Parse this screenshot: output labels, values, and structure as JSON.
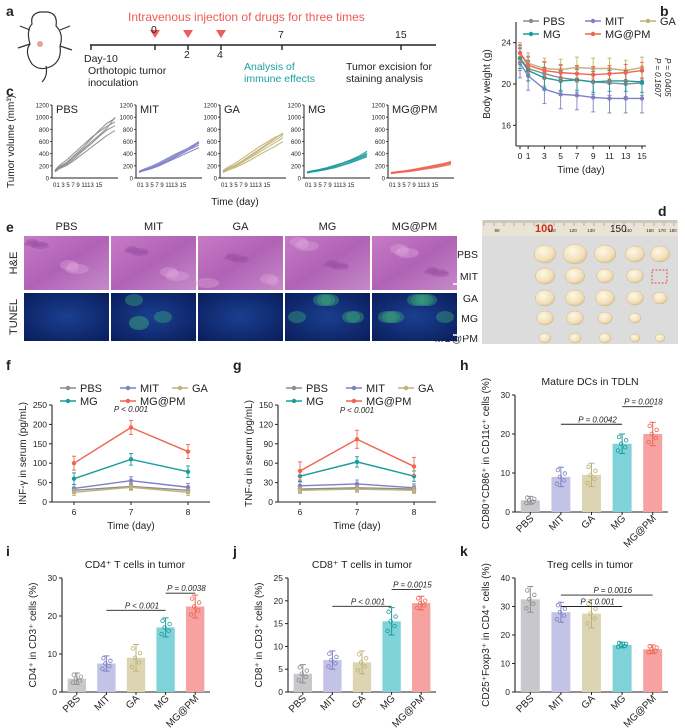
{
  "panel_a": {
    "label": "a",
    "injection_text": "Intravenous injection of drugs for three times",
    "timeline_ticks": [
      "Day-10",
      "0",
      "2",
      "4",
      "7",
      "15"
    ],
    "inoculation_text": [
      "Orthotopic tumor",
      "inoculation"
    ],
    "analysis_text": [
      "Analysis of",
      "immune effects"
    ],
    "excision_text": [
      "Tumor excision for",
      "staining analysis"
    ],
    "colors": {
      "injection": "#f05a5a",
      "analysis": "#1aa3a3",
      "line": "#222222"
    }
  },
  "groups": [
    "PBS",
    "MIT",
    "GA",
    "MG",
    "MG@PM"
  ],
  "group_colors": {
    "PBS": "#8c8c8c",
    "MIT": "#7f7fc5",
    "GA": "#bfb276",
    "MG": "#1a9c9c",
    "MG@PM": "#f06450"
  },
  "group_fills": {
    "PBS": "#c7c7cc",
    "MIT": "#c3c3e8",
    "GA": "#dcd5b4",
    "MG": "#7fd2d8",
    "MG@PM": "#f6a2a0"
  },
  "chart_data": [
    {
      "id": "b",
      "type": "line",
      "label": "b",
      "ylabel": "Body weight (g)",
      "xlabel": "Time (day)",
      "x": [
        0,
        1,
        3,
        5,
        7,
        9,
        11,
        13,
        15
      ],
      "xticks": [
        "0",
        "1",
        "3",
        "5",
        "7",
        "9",
        "11",
        "13",
        "15"
      ],
      "ylim": [
        14,
        26
      ],
      "yticks": [
        "16",
        "20",
        "24"
      ],
      "series": [
        {
          "name": "PBS",
          "values": [
            22.5,
            21.5,
            21.0,
            20.6,
            20.4,
            20.2,
            20.1,
            20.0,
            20.1
          ],
          "err": 1.2
        },
        {
          "name": "MIT",
          "values": [
            22.0,
            20.8,
            19.5,
            19.0,
            18.9,
            18.7,
            18.6,
            18.6,
            18.6
          ],
          "err": 1.4
        },
        {
          "name": "GA",
          "values": [
            23.0,
            22.0,
            21.5,
            21.4,
            21.6,
            21.5,
            21.5,
            21.3,
            21.6
          ],
          "err": 1.0
        },
        {
          "name": "MG",
          "values": [
            22.5,
            21.3,
            20.6,
            20.3,
            20.4,
            20.2,
            20.3,
            20.3,
            20.2
          ],
          "err": 1.0
        },
        {
          "name": "MG@PM",
          "values": [
            23.0,
            21.8,
            21.3,
            21.1,
            21.0,
            20.9,
            21.0,
            21.1,
            21.3
          ],
          "err": 0.8
        }
      ],
      "pvalues": [
        "P = 0.1607",
        "P = 0.0405"
      ]
    },
    {
      "id": "c",
      "type": "line",
      "label": "c",
      "ylabel": "Tumor volume (mm³)",
      "xlabel": "Time (day)",
      "x": [
        0,
        1,
        3,
        5,
        7,
        9,
        11,
        13,
        15
      ],
      "xticks": [
        "0",
        "1",
        "3",
        "5",
        "7",
        "9",
        "11",
        "13",
        "15"
      ],
      "xtick_text": "01 3 5 7 9 1113 15",
      "ylim": [
        0,
        1200
      ],
      "yticks": [
        "0",
        "200",
        "400",
        "600",
        "800",
        "1000",
        "1200"
      ],
      "panels": [
        {
          "name": "PBS",
          "curves": [
            [
              120,
              180,
              260,
              380,
              500,
              640,
              780,
              900,
              980
            ],
            [
              110,
              160,
              230,
              330,
              450,
              560,
              680,
              790,
              860
            ],
            [
              130,
              200,
              300,
              420,
              540,
              660,
              760,
              850,
              920
            ],
            [
              100,
              150,
              210,
              300,
              400,
              500,
              600,
              700,
              780
            ],
            [
              115,
              170,
              250,
              360,
              470,
              590,
              700,
              820,
              1000
            ]
          ]
        },
        {
          "name": "MIT",
          "curves": [
            [
              100,
              130,
              170,
              230,
              300,
              370,
              440,
              520,
              600
            ],
            [
              90,
              120,
              160,
              210,
              270,
              340,
              410,
              480,
              540
            ],
            [
              110,
              140,
              190,
              250,
              320,
              390,
              450,
              510,
              570
            ],
            [
              95,
              115,
              150,
              200,
              260,
              320,
              380,
              440,
              500
            ],
            [
              100,
              125,
              165,
              220,
              280,
              350,
              420,
              490,
              580
            ]
          ]
        },
        {
          "name": "GA",
          "curves": [
            [
              110,
              150,
              210,
              290,
              380,
              470,
              560,
              650,
              740
            ],
            [
              100,
              140,
              190,
              260,
              340,
              420,
              500,
              580,
              660
            ],
            [
              120,
              170,
              240,
              330,
              420,
              510,
              590,
              670,
              720
            ],
            [
              90,
              120,
              170,
              230,
              300,
              380,
              450,
              520,
              600
            ],
            [
              105,
              150,
              200,
              280,
              360,
              450,
              540,
              620,
              700
            ]
          ]
        },
        {
          "name": "MG",
          "curves": [
            [
              90,
              105,
              130,
              160,
              200,
              240,
              290,
              340,
              410
            ],
            [
              80,
              95,
              115,
              140,
              170,
              210,
              250,
              300,
              350
            ],
            [
              100,
              115,
              140,
              170,
              210,
              250,
              300,
              360,
              440
            ],
            [
              85,
              100,
              120,
              150,
              185,
              220,
              260,
              310,
              370
            ],
            [
              95,
              110,
              135,
              165,
              205,
              245,
              280,
              330,
              390
            ]
          ]
        },
        {
          "name": "MG@PM",
          "curves": [
            [
              80,
              90,
              105,
              125,
              150,
              175,
              200,
              230,
              260
            ],
            [
              75,
              85,
              100,
              115,
              135,
              160,
              185,
              210,
              240
            ],
            [
              90,
              100,
              115,
              135,
              160,
              185,
              210,
              235,
              270
            ],
            [
              70,
              80,
              95,
              110,
              130,
              150,
              170,
              195,
              220
            ],
            [
              85,
              95,
              110,
              130,
              150,
              170,
              195,
              220,
              250
            ]
          ]
        }
      ]
    },
    {
      "id": "f",
      "type": "line",
      "label": "f",
      "ylabel": "INF-γ in serum (pg/mL)",
      "xlabel": "Time (day)",
      "x": [
        6,
        7,
        8
      ],
      "xticks": [
        "6",
        "7",
        "8"
      ],
      "ylim": [
        0,
        250
      ],
      "yticks": [
        "0",
        "50",
        "100",
        "150",
        "200",
        "250"
      ],
      "series": [
        {
          "name": "PBS",
          "values": [
            30,
            40,
            30
          ],
          "err": 8
        },
        {
          "name": "MIT",
          "values": [
            35,
            55,
            38
          ],
          "err": 10
        },
        {
          "name": "GA",
          "values": [
            25,
            38,
            25
          ],
          "err": 8
        },
        {
          "name": "MG",
          "values": [
            60,
            110,
            78
          ],
          "err": 15
        },
        {
          "name": "MG@PM",
          "values": [
            100,
            192,
            130
          ],
          "err": 18
        }
      ],
      "pvalue": "P < 0.001"
    },
    {
      "id": "g",
      "type": "line",
      "label": "g",
      "ylabel": "TNF-α in serum (pg/mL)",
      "xlabel": "Time (day)",
      "x": [
        6,
        7,
        8
      ],
      "xticks": [
        "6",
        "7",
        "8"
      ],
      "ylim": [
        0,
        150
      ],
      "yticks": [
        "0",
        "30",
        "60",
        "90",
        "120",
        "150"
      ],
      "series": [
        {
          "name": "PBS",
          "values": [
            20,
            22,
            20
          ],
          "err": 5
        },
        {
          "name": "MIT",
          "values": [
            25,
            28,
            22
          ],
          "err": 6
        },
        {
          "name": "GA",
          "values": [
            18,
            20,
            18
          ],
          "err": 5
        },
        {
          "name": "MG",
          "values": [
            40,
            62,
            40
          ],
          "err": 8
        },
        {
          "name": "MG@PM",
          "values": [
            48,
            97,
            55
          ],
          "err": 14
        }
      ],
      "pvalue": "P < 0.001"
    },
    {
      "id": "h",
      "type": "bar",
      "label": "h",
      "title": "Mature DCs in TDLN",
      "ylabel": "CD80⁺CD86⁺ in CD11c⁺ cells (%)",
      "categories": [
        "PBS",
        "MIT",
        "GA",
        "MG",
        "MG@PM"
      ],
      "values": [
        3.0,
        9.0,
        9.5,
        17.5,
        20.0
      ],
      "err": [
        1.0,
        2.5,
        3.0,
        2.5,
        3.0
      ],
      "ylim": [
        0,
        30
      ],
      "yticks": [
        "0",
        "10",
        "20",
        "30"
      ],
      "pvalues": [
        "P = 0.0018",
        "P = 0.0042"
      ]
    },
    {
      "id": "i",
      "type": "bar",
      "label": "i",
      "title": "CD4⁺ T cells in tumor",
      "ylabel": "CD4⁺ in CD3⁺ cells (%)",
      "categories": [
        "PBS",
        "MIT",
        "GA",
        "MG",
        "MG@PM"
      ],
      "values": [
        3.5,
        7.5,
        9.0,
        17.0,
        22.5
      ],
      "err": [
        1.5,
        2.0,
        3.5,
        2.5,
        3.0
      ],
      "ylim": [
        0,
        30
      ],
      "yticks": [
        "0",
        "10",
        "20",
        "30"
      ],
      "pvalues": [
        "P = 0.0038",
        "P < 0.001"
      ]
    },
    {
      "id": "j",
      "type": "bar",
      "label": "j",
      "title": "CD8⁺ T cells in tumor",
      "ylabel": "CD8⁺ in CD3⁺ cells (%)",
      "categories": [
        "PBS",
        "MIT",
        "GA",
        "MG",
        "MG@PM"
      ],
      "values": [
        4.0,
        7.0,
        6.5,
        15.5,
        19.5
      ],
      "err": [
        2.0,
        2.0,
        2.5,
        3.0,
        1.5
      ],
      "ylim": [
        0,
        25
      ],
      "yticks": [
        "0",
        "5",
        "10",
        "15",
        "20",
        "25"
      ],
      "pvalues": [
        "P = 0.0015",
        "P < 0.001"
      ]
    },
    {
      "id": "k",
      "type": "bar",
      "label": "k",
      "title": "Treg cells in tumor",
      "ylabel": "CD25⁺Foxp3⁺ in CD4⁺ cells (%)",
      "categories": [
        "PBS",
        "MIT",
        "GA",
        "MG",
        "MG@PM"
      ],
      "values": [
        32.5,
        28.0,
        27.5,
        16.5,
        15.0
      ],
      "err": [
        4.5,
        3.5,
        5.0,
        1.0,
        1.5
      ],
      "ylim": [
        0,
        40
      ],
      "yticks": [
        "0",
        "10",
        "20",
        "30",
        "40"
      ],
      "pvalues": [
        "P = 0.0016",
        "P < 0.001"
      ]
    }
  ],
  "panel_d": {
    "label": "d",
    "ruler_labels": [
      "100",
      "150"
    ],
    "ruler_small": [
      "90",
      "110",
      "120",
      "130",
      "140",
      "160",
      "170",
      "180"
    ],
    "rows": [
      "PBS",
      "MIT",
      "GA",
      "MG",
      "MG@PM"
    ],
    "tumor_counts": [
      5,
      5,
      5,
      4,
      5
    ]
  },
  "panel_e": {
    "label": "e",
    "columns": [
      "PBS",
      "MIT",
      "GA",
      "MG",
      "MG@PM"
    ],
    "rows": [
      "H&E",
      "TUNEL"
    ]
  }
}
